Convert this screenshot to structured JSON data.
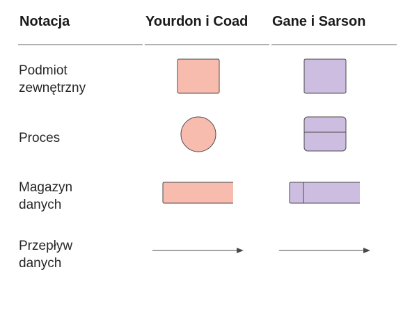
{
  "header": {
    "col1": "Notacja",
    "col2": "Yourdon i Coad",
    "col3": "Gane i Sarson"
  },
  "rows": [
    {
      "label_line1": "Podmiot",
      "label_line2": "zewnętrzny"
    },
    {
      "label_line1": "Proces",
      "label_line2": ""
    },
    {
      "label_line1": "Magazyn",
      "label_line2": "danych"
    },
    {
      "label_line1": "Przepływ",
      "label_line2": "danych"
    }
  ],
  "colors": {
    "yourdon_fill": "#f8bcae",
    "gane_fill": "#cdbde0",
    "stroke": "#4a4a4a",
    "rule": "#555555"
  }
}
